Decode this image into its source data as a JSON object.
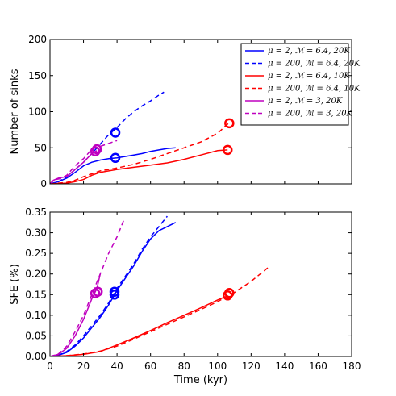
{
  "chart_data": [
    {
      "type": "line",
      "xlabel": "",
      "ylabel": "Number of sinks",
      "xlim": [
        0,
        180
      ],
      "ylim": [
        0,
        200
      ],
      "xticks": [
        0,
        20,
        40,
        60,
        80,
        100,
        120,
        140,
        160,
        180
      ],
      "yticks": [
        0,
        50,
        100,
        150,
        200
      ],
      "show_xtick_labels": false,
      "legend_position": "top-right",
      "legend": [
        {
          "label": "μ = 2, ℳ = 6.4, 20K",
          "color": "#0000ff",
          "dashed": false
        },
        {
          "label": "μ = 200, ℳ = 6.4, 20K",
          "color": "#0000ff",
          "dashed": true
        },
        {
          "label": "μ = 2, ℳ = 6.4, 10K",
          "color": "#ff0000",
          "dashed": false
        },
        {
          "label": "μ = 200, ℳ = 6.4, 10K",
          "color": "#ff0000",
          "dashed": true
        },
        {
          "label": "μ = 2, ℳ = 3, 20K",
          "color": "#bf00bf",
          "dashed": false
        },
        {
          "label": "μ = 200, ℳ = 3, 20K",
          "color": "#bf00bf",
          "dashed": true
        }
      ],
      "series": [
        {
          "color": "#0000ff",
          "dashed": false,
          "x": [
            0,
            5,
            10,
            15,
            20,
            25,
            30,
            35,
            40,
            45,
            50,
            55,
            60,
            65,
            70,
            75
          ],
          "y": [
            0,
            3,
            8,
            16,
            25,
            30,
            33,
            35,
            36,
            38,
            40,
            42,
            45,
            47,
            49,
            50
          ]
        },
        {
          "color": "#0000ff",
          "dashed": true,
          "x": [
            0,
            5,
            10,
            15,
            20,
            25,
            30,
            35,
            40,
            45,
            50,
            55,
            60,
            65,
            68
          ],
          "y": [
            0,
            3,
            10,
            20,
            30,
            42,
            55,
            68,
            78,
            90,
            100,
            108,
            115,
            123,
            127
          ]
        },
        {
          "color": "#ff0000",
          "dashed": false,
          "x": [
            0,
            10,
            15,
            20,
            25,
            30,
            40,
            50,
            60,
            70,
            80,
            90,
            100,
            106
          ],
          "y": [
            0,
            1,
            3,
            6,
            12,
            16,
            20,
            23,
            26,
            29,
            34,
            40,
            46,
            47
          ]
        },
        {
          "color": "#ff0000",
          "dashed": true,
          "x": [
            0,
            10,
            15,
            20,
            25,
            30,
            40,
            50,
            60,
            70,
            80,
            90,
            100,
            107
          ],
          "y": [
            0,
            2,
            5,
            10,
            14,
            18,
            22,
            27,
            34,
            42,
            50,
            58,
            70,
            85
          ]
        },
        {
          "color": "#bf00bf",
          "dashed": false,
          "x": [
            0,
            2,
            5,
            10,
            15,
            20,
            25,
            28
          ],
          "y": [
            0,
            5,
            8,
            10,
            20,
            30,
            42,
            46
          ]
        },
        {
          "color": "#bf00bf",
          "dashed": true,
          "x": [
            0,
            3,
            6,
            10,
            15,
            20,
            25,
            30,
            35,
            40
          ],
          "y": [
            0,
            6,
            7,
            12,
            25,
            35,
            48,
            52,
            56,
            60
          ]
        }
      ],
      "markers": [
        {
          "x": 39,
          "y": 71,
          "color": "#0000ff"
        },
        {
          "x": 39,
          "y": 36,
          "color": "#0000ff"
        },
        {
          "x": 106,
          "y": 47,
          "color": "#ff0000"
        },
        {
          "x": 107,
          "y": 84,
          "color": "#ff0000"
        },
        {
          "x": 27,
          "y": 45,
          "color": "#bf00bf"
        },
        {
          "x": 28,
          "y": 48,
          "color": "#bf00bf"
        }
      ]
    },
    {
      "type": "line",
      "xlabel": "Time (kyr)",
      "ylabel": "SFE (%)",
      "xlim": [
        0,
        180
      ],
      "ylim": [
        0,
        0.35
      ],
      "xticks": [
        0,
        20,
        40,
        60,
        80,
        100,
        120,
        140,
        160,
        180
      ],
      "yticks": [
        0.0,
        0.05,
        0.1,
        0.15,
        0.2,
        0.25,
        0.3,
        0.35
      ],
      "ytick_labels": [
        "0.00",
        "0.05",
        "0.10",
        "0.15",
        "0.20",
        "0.25",
        "0.30",
        "0.35"
      ],
      "show_xtick_labels": true,
      "series": [
        {
          "color": "#0000ff",
          "dashed": false,
          "x": [
            0,
            5,
            10,
            15,
            20,
            25,
            30,
            35,
            40,
            45,
            50,
            55,
            60,
            65,
            70,
            75
          ],
          "y": [
            0,
            0.003,
            0.01,
            0.025,
            0.045,
            0.07,
            0.095,
            0.125,
            0.16,
            0.19,
            0.22,
            0.255,
            0.285,
            0.305,
            0.315,
            0.325
          ]
        },
        {
          "color": "#0000ff",
          "dashed": true,
          "x": [
            0,
            5,
            10,
            15,
            20,
            25,
            30,
            35,
            40,
            45,
            50,
            55,
            60,
            65,
            70
          ],
          "y": [
            0,
            0.003,
            0.012,
            0.028,
            0.05,
            0.075,
            0.1,
            0.13,
            0.165,
            0.195,
            0.225,
            0.26,
            0.29,
            0.315,
            0.34
          ]
        },
        {
          "color": "#ff0000",
          "dashed": false,
          "x": [
            0,
            10,
            20,
            30,
            40,
            50,
            60,
            70,
            80,
            90,
            100,
            106
          ],
          "y": [
            0,
            0.002,
            0.005,
            0.012,
            0.028,
            0.045,
            0.063,
            0.082,
            0.1,
            0.118,
            0.137,
            0.147
          ]
        },
        {
          "color": "#ff0000",
          "dashed": true,
          "x": [
            0,
            10,
            20,
            30,
            40,
            50,
            60,
            70,
            80,
            90,
            100,
            110,
            120,
            130
          ],
          "y": [
            0,
            0.002,
            0.006,
            0.013,
            0.025,
            0.042,
            0.06,
            0.078,
            0.096,
            0.114,
            0.133,
            0.155,
            0.182,
            0.215
          ]
        },
        {
          "color": "#bf00bf",
          "dashed": false,
          "x": [
            0,
            5,
            10,
            15,
            20,
            25,
            28,
            30
          ],
          "y": [
            0,
            0.005,
            0.02,
            0.05,
            0.09,
            0.14,
            0.165,
            0.2
          ]
        },
        {
          "color": "#bf00bf",
          "dashed": true,
          "x": [
            0,
            5,
            10,
            15,
            20,
            25,
            30,
            35,
            40,
            44
          ],
          "y": [
            0,
            0.006,
            0.025,
            0.06,
            0.1,
            0.15,
            0.2,
            0.25,
            0.29,
            0.33
          ]
        }
      ],
      "markers": [
        {
          "x": 38.5,
          "y": 0.157,
          "color": "#0000ff"
        },
        {
          "x": 38.5,
          "y": 0.15,
          "color": "#0000ff"
        },
        {
          "x": 106,
          "y": 0.148,
          "color": "#ff0000"
        },
        {
          "x": 107,
          "y": 0.154,
          "color": "#ff0000"
        },
        {
          "x": 27,
          "y": 0.153,
          "color": "#bf00bf"
        },
        {
          "x": 28.5,
          "y": 0.157,
          "color": "#bf00bf"
        }
      ]
    }
  ]
}
